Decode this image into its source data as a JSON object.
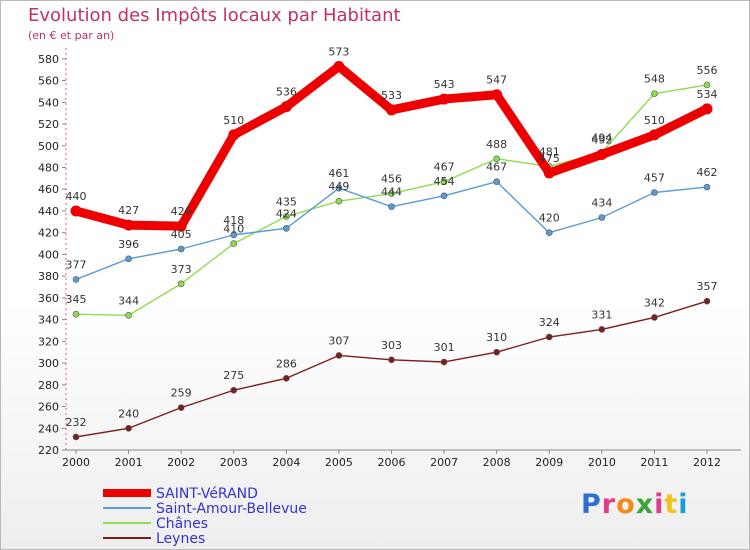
{
  "title": "Evolution des Impôts locaux par Habitant",
  "subtitle": "(en € et par an)",
  "brand": "Proxiti",
  "brand_colors": [
    "#2f6fd0",
    "#e03a8a",
    "#f28a1a",
    "#3aa63a",
    "#e03a8a",
    "#f2c21a",
    "#1aa0d8"
  ],
  "chart_data": {
    "type": "line",
    "title": "Evolution des Impôts locaux par Habitant",
    "subtitle": "(en € et par an)",
    "x": [
      "2000",
      "2001",
      "2002",
      "2003",
      "2004",
      "2005",
      "2006",
      "2007",
      "2008",
      "2009",
      "2010",
      "2011",
      "2012"
    ],
    "ylim": [
      220,
      590
    ],
    "yticks": [
      220,
      240,
      260,
      280,
      300,
      320,
      340,
      360,
      380,
      400,
      420,
      440,
      460,
      480,
      500,
      520,
      540,
      560,
      580
    ],
    "grid": false,
    "legend_position": "bottom-left",
    "series": [
      {
        "name": "SAINT-VéRAND",
        "color": "#ee0000",
        "values": [
          440,
          427,
          426,
          510,
          536,
          573,
          533,
          543,
          547,
          475,
          492,
          510,
          534
        ]
      },
      {
        "name": "Saint-Amour-Bellevue",
        "color": "#5b9bd5",
        "values": [
          377,
          396,
          405,
          418,
          424,
          461,
          444,
          454,
          467,
          420,
          434,
          457,
          462
        ]
      },
      {
        "name": "Chânes",
        "color": "#8fdc4f",
        "values": [
          345,
          344,
          373,
          410,
          435,
          449,
          456,
          467,
          488,
          481,
          494,
          548,
          556
        ]
      },
      {
        "name": "Leynes",
        "color": "#7a1e1e",
        "values": [
          232,
          240,
          259,
          275,
          286,
          307,
          303,
          301,
          310,
          324,
          331,
          342,
          357
        ]
      }
    ],
    "value_labels": [
      [
        "440",
        "427",
        "426",
        "510",
        "536",
        "573",
        "533",
        "543",
        "547",
        "475",
        "492",
        "510",
        "534"
      ],
      [
        "377",
        "396",
        "405",
        "418",
        "424",
        "461",
        "444",
        "454",
        "467",
        "420",
        "434",
        "457",
        "462"
      ],
      [
        "345",
        "344",
        "373",
        "410",
        "435",
        "449",
        "456",
        "467",
        "488",
        "481",
        "494",
        "548",
        "556"
      ],
      [
        "232",
        "240",
        "259",
        "275",
        "286",
        "307",
        "303",
        "301",
        "310",
        "324",
        "331",
        "342",
        "357"
      ]
    ]
  }
}
